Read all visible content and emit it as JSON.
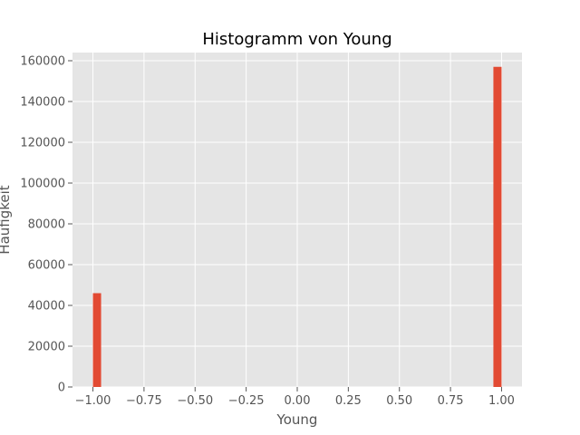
{
  "chart_data": {
    "type": "bar",
    "title": "Histogramm von Young",
    "xlabel": "Young",
    "ylabel": "Häufigkeit",
    "xlim": [
      -1.1,
      1.1
    ],
    "ylim": [
      0,
      164000
    ],
    "x_ticks": [
      -1.0,
      -0.75,
      -0.5,
      -0.25,
      0.0,
      0.25,
      0.5,
      0.75,
      1.0
    ],
    "x_tick_labels": [
      "−1.00",
      "−0.75",
      "−0.50",
      "−0.25",
      "0.00",
      "0.25",
      "0.50",
      "0.75",
      "1.00"
    ],
    "y_ticks": [
      0,
      20000,
      40000,
      60000,
      80000,
      100000,
      120000,
      140000,
      160000
    ],
    "y_tick_labels": [
      "0",
      "20000",
      "40000",
      "60000",
      "80000",
      "100000",
      "120000",
      "140000",
      "160000"
    ],
    "bin_width": 0.04,
    "bins": [
      {
        "x0": -1.0,
        "x1": -0.96,
        "count": 46000
      },
      {
        "x0": 0.96,
        "x1": 1.0,
        "count": 157000
      }
    ],
    "grid": true,
    "colors": {
      "bar": "#E24A33",
      "background": "#E5E5E5",
      "grid": "#FFFFFF"
    }
  }
}
